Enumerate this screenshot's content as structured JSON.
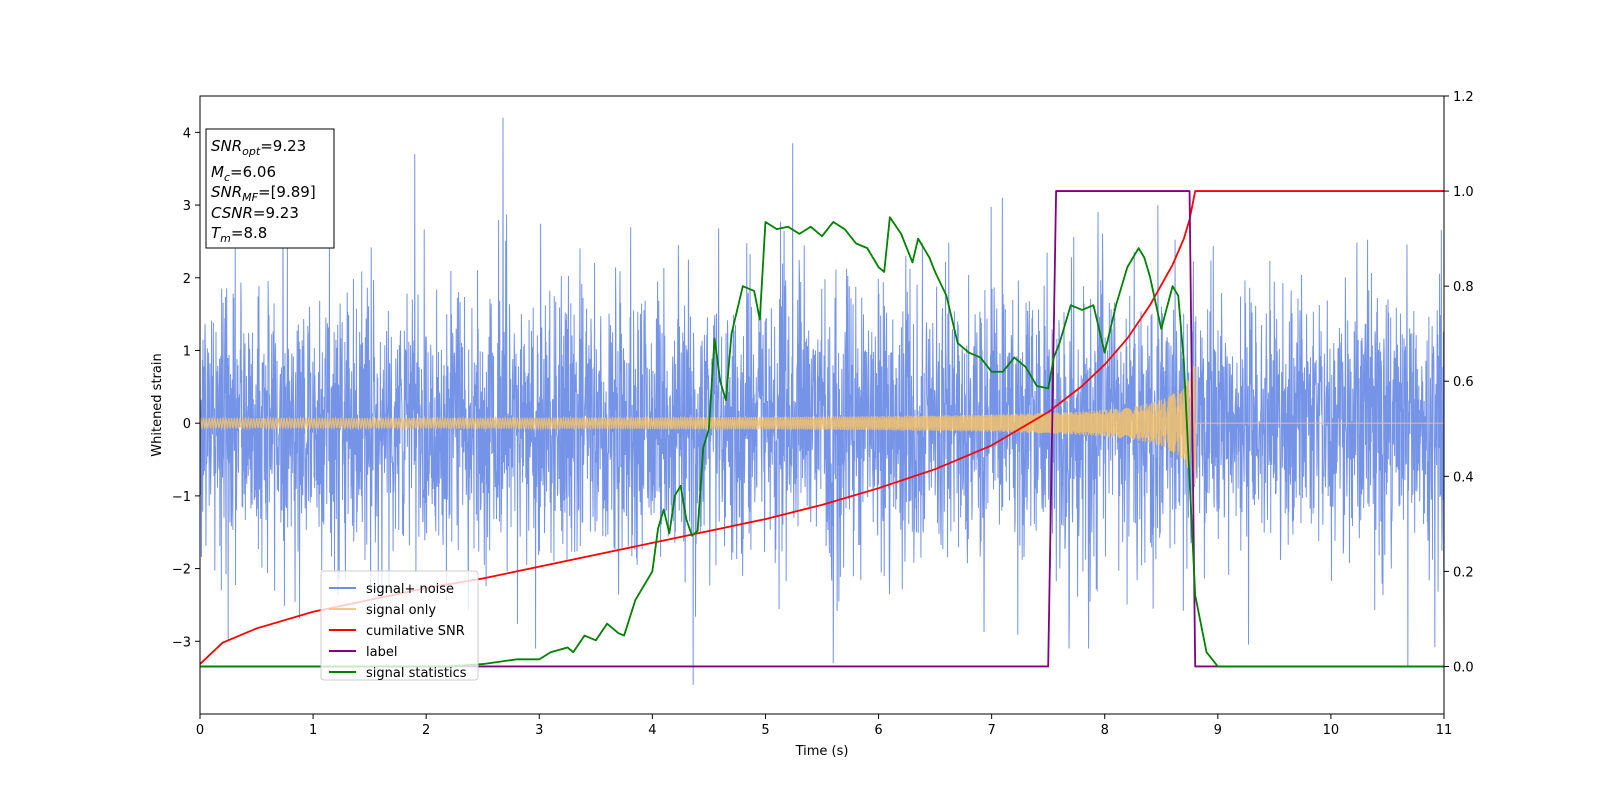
{
  "chart_data": {
    "type": "line",
    "xlabel": "Time (s)",
    "ylabel": "Whitened strain",
    "xlim": [
      0,
      11
    ],
    "ylim_left": [
      -4.0,
      4.5
    ],
    "ylim_right": [
      -0.1,
      1.2
    ],
    "x_ticks": [
      "0",
      "1",
      "2",
      "3",
      "4",
      "5",
      "6",
      "7",
      "8",
      "9",
      "10",
      "11"
    ],
    "y_left_ticks": [
      "−3",
      "−2",
      "−1",
      "0",
      "1",
      "2",
      "3",
      "4"
    ],
    "y_right_ticks": [
      "0.0",
      "0.2",
      "0.4",
      "0.6",
      "0.8",
      "1.0",
      "1.2"
    ],
    "grid": false,
    "legend_position": "lower-left",
    "info_box": {
      "snr_opt": "=9.23",
      "mc": "=6.06",
      "snr_mf": "=[9.89]",
      "csnr": "=9.23",
      "tm": "=8.8"
    },
    "series": [
      {
        "name": "signal+ noise",
        "axis": "left",
        "color": "#6f8ee6",
        "description_kind": "noise",
        "sigma": 0.95,
        "extremes": [
          {
            "x": 2.68,
            "y": 4.2
          },
          {
            "x": 1.9,
            "y": 3.7
          },
          {
            "x": 5.24,
            "y": 3.85
          },
          {
            "x": 4.36,
            "y": -3.6
          },
          {
            "x": 0.25,
            "y": -3.0
          },
          {
            "x": 10.68,
            "y": 3.25
          },
          {
            "x": 10.68,
            "y": -3.35
          },
          {
            "x": 5.6,
            "y": -3.3
          }
        ]
      },
      {
        "name": "signal only",
        "axis": "left",
        "color": "#f5c26b",
        "description_kind": "chirp",
        "amplitude_start": 0.05,
        "amplitude_end": 0.9,
        "merger_time": 8.8
      },
      {
        "name": "cumilative SNR",
        "axis": "right",
        "color": "#ff0000",
        "points": [
          [
            0.0,
            0.005
          ],
          [
            0.2,
            0.05
          ],
          [
            0.5,
            0.08
          ],
          [
            1.0,
            0.115
          ],
          [
            1.5,
            0.14
          ],
          [
            2.0,
            0.165
          ],
          [
            2.5,
            0.185
          ],
          [
            3.0,
            0.21
          ],
          [
            3.5,
            0.235
          ],
          [
            4.0,
            0.26
          ],
          [
            4.5,
            0.285
          ],
          [
            5.0,
            0.31
          ],
          [
            5.5,
            0.34
          ],
          [
            6.0,
            0.375
          ],
          [
            6.5,
            0.415
          ],
          [
            7.0,
            0.465
          ],
          [
            7.5,
            0.535
          ],
          [
            7.8,
            0.59
          ],
          [
            8.0,
            0.635
          ],
          [
            8.2,
            0.69
          ],
          [
            8.4,
            0.76
          ],
          [
            8.6,
            0.845
          ],
          [
            8.7,
            0.9
          ],
          [
            8.75,
            0.94
          ],
          [
            8.8,
            1.0
          ],
          [
            11.0,
            1.0
          ]
        ]
      },
      {
        "name": "label",
        "axis": "right",
        "color": "#800080",
        "points": [
          [
            0.0,
            0.0
          ],
          [
            7.5,
            0.0
          ],
          [
            7.57,
            1.0
          ],
          [
            8.75,
            1.0
          ],
          [
            8.8,
            0.0
          ],
          [
            11.0,
            0.0
          ]
        ]
      },
      {
        "name": "signal statistics",
        "axis": "right",
        "color": "#008000",
        "points": [
          [
            0.0,
            0.0
          ],
          [
            2.2,
            0.0
          ],
          [
            2.5,
            0.005
          ],
          [
            2.8,
            0.015
          ],
          [
            3.0,
            0.015
          ],
          [
            3.1,
            0.03
          ],
          [
            3.25,
            0.04
          ],
          [
            3.3,
            0.03
          ],
          [
            3.4,
            0.065
          ],
          [
            3.5,
            0.055
          ],
          [
            3.6,
            0.09
          ],
          [
            3.7,
            0.07
          ],
          [
            3.75,
            0.065
          ],
          [
            3.85,
            0.14
          ],
          [
            4.0,
            0.2
          ],
          [
            4.05,
            0.29
          ],
          [
            4.1,
            0.33
          ],
          [
            4.15,
            0.28
          ],
          [
            4.2,
            0.36
          ],
          [
            4.25,
            0.38
          ],
          [
            4.3,
            0.31
          ],
          [
            4.35,
            0.275
          ],
          [
            4.4,
            0.285
          ],
          [
            4.45,
            0.46
          ],
          [
            4.5,
            0.5
          ],
          [
            4.55,
            0.69
          ],
          [
            4.6,
            0.6
          ],
          [
            4.65,
            0.56
          ],
          [
            4.7,
            0.7
          ],
          [
            4.8,
            0.8
          ],
          [
            4.9,
            0.79
          ],
          [
            4.95,
            0.73
          ],
          [
            5.0,
            0.935
          ],
          [
            5.1,
            0.92
          ],
          [
            5.2,
            0.925
          ],
          [
            5.3,
            0.91
          ],
          [
            5.4,
            0.925
          ],
          [
            5.5,
            0.905
          ],
          [
            5.6,
            0.935
          ],
          [
            5.7,
            0.92
          ],
          [
            5.8,
            0.89
          ],
          [
            5.9,
            0.88
          ],
          [
            6.0,
            0.84
          ],
          [
            6.05,
            0.83
          ],
          [
            6.1,
            0.945
          ],
          [
            6.2,
            0.91
          ],
          [
            6.3,
            0.85
          ],
          [
            6.35,
            0.9
          ],
          [
            6.45,
            0.86
          ],
          [
            6.5,
            0.83
          ],
          [
            6.6,
            0.78
          ],
          [
            6.7,
            0.68
          ],
          [
            6.8,
            0.66
          ],
          [
            6.9,
            0.65
          ],
          [
            7.0,
            0.62
          ],
          [
            7.1,
            0.62
          ],
          [
            7.2,
            0.65
          ],
          [
            7.3,
            0.63
          ],
          [
            7.4,
            0.59
          ],
          [
            7.5,
            0.585
          ],
          [
            7.55,
            0.65
          ],
          [
            7.6,
            0.68
          ],
          [
            7.7,
            0.76
          ],
          [
            7.8,
            0.75
          ],
          [
            7.9,
            0.76
          ],
          [
            8.0,
            0.66
          ],
          [
            8.1,
            0.76
          ],
          [
            8.2,
            0.84
          ],
          [
            8.25,
            0.86
          ],
          [
            8.3,
            0.88
          ],
          [
            8.35,
            0.86
          ],
          [
            8.4,
            0.82
          ],
          [
            8.5,
            0.71
          ],
          [
            8.6,
            0.8
          ],
          [
            8.65,
            0.78
          ],
          [
            8.7,
            0.64
          ],
          [
            8.8,
            0.15
          ],
          [
            8.9,
            0.03
          ],
          [
            9.0,
            0.0
          ],
          [
            11.0,
            0.0
          ]
        ]
      }
    ]
  }
}
